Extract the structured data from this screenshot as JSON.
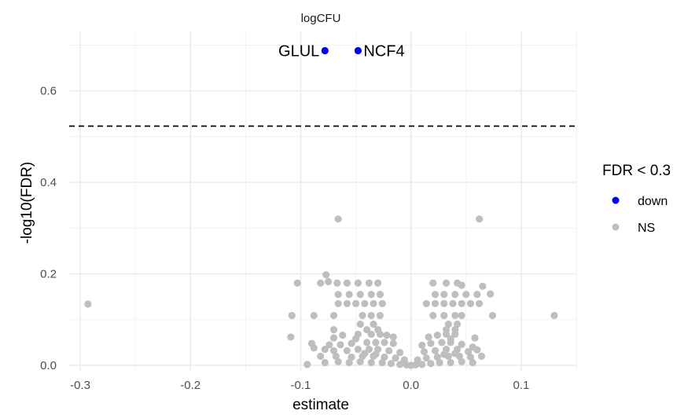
{
  "chart_data": {
    "type": "scatter",
    "title": "logCFU",
    "xlabel": "estimate",
    "ylabel": "-log10(FDR)",
    "xlim": [
      -0.31,
      0.15
    ],
    "ylim": [
      -0.012,
      0.73
    ],
    "x_ticks": [
      -0.3,
      -0.2,
      -0.1,
      0.0,
      0.1
    ],
    "x_tick_labels": [
      "-0.3",
      "-0.2",
      "-0.1",
      "0.0",
      "0.1"
    ],
    "y_ticks": [
      0.0,
      0.2,
      0.4,
      0.6
    ],
    "y_tick_labels": [
      "0.0",
      "0.2",
      "0.4",
      "0.6"
    ],
    "grid": true,
    "threshold_line": {
      "y": 0.523,
      "style": "dashed"
    },
    "legend": {
      "title": "FDR < 0.3",
      "position": "right",
      "entries": [
        {
          "label": "down",
          "color": "#0000ee"
        },
        {
          "label": "NS",
          "color": "#bebebe"
        }
      ]
    },
    "labeled_points": [
      {
        "label": "GLUL",
        "x": -0.078,
        "y": 0.688,
        "color": "#0000ee"
      },
      {
        "label": "NCF4",
        "x": -0.048,
        "y": 0.688,
        "color": "#0000ee"
      }
    ],
    "series": [
      {
        "name": "NS",
        "color": "#bebebe",
        "points": [
          [
            -0.293,
            0.134
          ],
          [
            0.13,
            0.109
          ],
          [
            -0.066,
            0.32
          ],
          [
            0.062,
            0.32
          ],
          [
            -0.103,
            0.18
          ],
          [
            -0.082,
            0.18
          ],
          [
            -0.077,
            0.198
          ],
          [
            -0.075,
            0.183
          ],
          [
            -0.067,
            0.18
          ],
          [
            -0.058,
            0.18
          ],
          [
            -0.048,
            0.18
          ],
          [
            -0.038,
            0.18
          ],
          [
            -0.03,
            0.18
          ],
          [
            0.02,
            0.18
          ],
          [
            0.032,
            0.18
          ],
          [
            0.042,
            0.18
          ],
          [
            0.046,
            0.175
          ],
          [
            0.065,
            0.173
          ],
          [
            0.072,
            0.156
          ],
          [
            -0.066,
            0.155
          ],
          [
            -0.056,
            0.155
          ],
          [
            -0.046,
            0.155
          ],
          [
            -0.036,
            0.155
          ],
          [
            -0.028,
            0.155
          ],
          [
            0.022,
            0.155
          ],
          [
            0.03,
            0.155
          ],
          [
            0.04,
            0.155
          ],
          [
            0.05,
            0.155
          ],
          [
            0.06,
            0.155
          ],
          [
            -0.066,
            0.135
          ],
          [
            -0.058,
            0.135
          ],
          [
            -0.05,
            0.135
          ],
          [
            -0.042,
            0.135
          ],
          [
            -0.034,
            0.135
          ],
          [
            -0.026,
            0.135
          ],
          [
            0.014,
            0.135
          ],
          [
            0.022,
            0.135
          ],
          [
            0.03,
            0.135
          ],
          [
            0.038,
            0.135
          ],
          [
            0.046,
            0.135
          ],
          [
            0.054,
            0.135
          ],
          [
            0.062,
            0.135
          ],
          [
            -0.108,
            0.109
          ],
          [
            -0.088,
            0.109
          ],
          [
            -0.07,
            0.109
          ],
          [
            -0.044,
            0.109
          ],
          [
            -0.036,
            0.109
          ],
          [
            -0.028,
            0.109
          ],
          [
            0.02,
            0.109
          ],
          [
            0.03,
            0.109
          ],
          [
            0.04,
            0.109
          ],
          [
            0.046,
            0.109
          ],
          [
            0.074,
            0.109
          ],
          [
            -0.046,
            0.09
          ],
          [
            -0.034,
            0.09
          ],
          [
            0.034,
            0.09
          ],
          [
            0.042,
            0.09
          ],
          [
            -0.07,
            0.078
          ],
          [
            -0.04,
            0.078
          ],
          [
            -0.03,
            0.078
          ],
          [
            0.032,
            0.078
          ],
          [
            0.04,
            0.078
          ],
          [
            -0.109,
            0.062
          ],
          [
            -0.07,
            0.06
          ],
          [
            -0.062,
            0.066
          ],
          [
            -0.048,
            0.068
          ],
          [
            -0.036,
            0.068
          ],
          [
            -0.028,
            0.068
          ],
          [
            -0.022,
            0.066
          ],
          [
            -0.016,
            0.062
          ],
          [
            0.016,
            0.062
          ],
          [
            0.024,
            0.066
          ],
          [
            0.032,
            0.068
          ],
          [
            0.04,
            0.068
          ],
          [
            0.058,
            0.06
          ],
          [
            -0.09,
            0.048
          ],
          [
            -0.074,
            0.045
          ],
          [
            -0.064,
            0.045
          ],
          [
            -0.054,
            0.048
          ],
          [
            -0.04,
            0.05
          ],
          [
            -0.032,
            0.05
          ],
          [
            -0.024,
            0.05
          ],
          [
            -0.016,
            0.048
          ],
          [
            0.01,
            0.044
          ],
          [
            0.018,
            0.048
          ],
          [
            0.028,
            0.05
          ],
          [
            0.036,
            0.05
          ],
          [
            0.046,
            0.046
          ],
          [
            0.056,
            0.04
          ],
          [
            -0.088,
            0.038
          ],
          [
            -0.078,
            0.035
          ],
          [
            -0.07,
            0.032
          ],
          [
            -0.058,
            0.032
          ],
          [
            -0.048,
            0.035
          ],
          [
            -0.038,
            0.035
          ],
          [
            -0.03,
            0.035
          ],
          [
            -0.02,
            0.032
          ],
          [
            -0.01,
            0.028
          ],
          [
            0.012,
            0.03
          ],
          [
            0.022,
            0.032
          ],
          [
            0.032,
            0.035
          ],
          [
            0.042,
            0.035
          ],
          [
            0.052,
            0.03
          ],
          [
            0.06,
            0.034
          ],
          [
            -0.082,
            0.02
          ],
          [
            -0.068,
            0.02
          ],
          [
            -0.054,
            0.018
          ],
          [
            -0.044,
            0.02
          ],
          [
            -0.034,
            0.02
          ],
          [
            -0.024,
            0.018
          ],
          [
            -0.014,
            0.016
          ],
          [
            -0.006,
            0.012
          ],
          [
            0.006,
            0.012
          ],
          [
            0.014,
            0.016
          ],
          [
            0.024,
            0.018
          ],
          [
            0.034,
            0.02
          ],
          [
            0.044,
            0.02
          ],
          [
            0.054,
            0.018
          ],
          [
            0.064,
            0.02
          ],
          [
            -0.094,
            0.002
          ],
          [
            -0.078,
            0.006
          ],
          [
            -0.066,
            0.008
          ],
          [
            -0.056,
            0.006
          ],
          [
            -0.046,
            0.008
          ],
          [
            -0.036,
            0.006
          ],
          [
            -0.026,
            0.006
          ],
          [
            -0.018,
            0.004
          ],
          [
            -0.01,
            0.002
          ],
          [
            -0.004,
            0.001
          ],
          [
            0.0,
            0.0
          ],
          [
            0.004,
            0.001
          ],
          [
            0.01,
            0.002
          ],
          [
            0.018,
            0.004
          ],
          [
            0.026,
            0.006
          ],
          [
            0.036,
            0.006
          ],
          [
            0.046,
            0.008
          ],
          [
            0.056,
            0.006
          ],
          [
            -0.042,
            0.026
          ],
          [
            -0.032,
            0.024
          ],
          [
            0.03,
            0.024
          ],
          [
            0.04,
            0.026
          ],
          [
            -0.05,
            0.058
          ],
          [
            0.036,
            0.058
          ]
        ]
      },
      {
        "name": "down",
        "color": "#0000ee",
        "points": [
          [
            -0.078,
            0.688
          ],
          [
            -0.048,
            0.688
          ]
        ]
      }
    ]
  }
}
